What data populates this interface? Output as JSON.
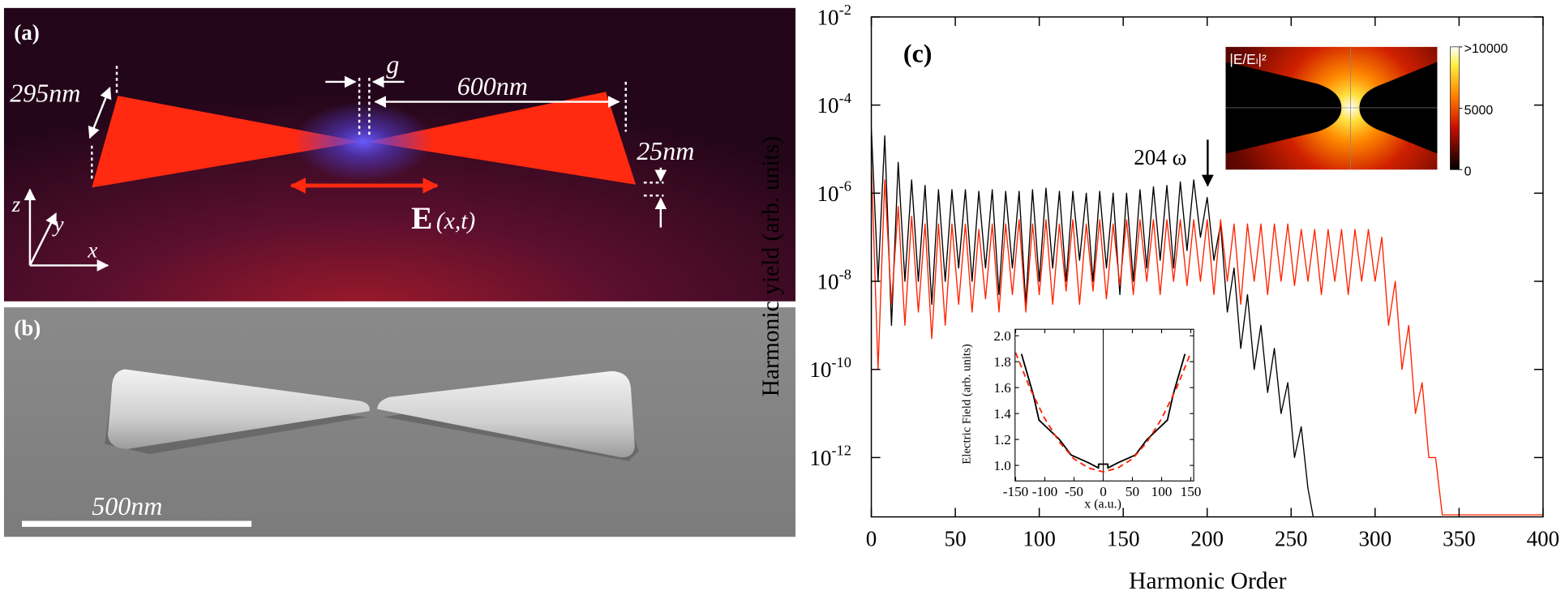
{
  "panel_a": {
    "label": "(a)",
    "height_label": "295nm",
    "gap_label": "g",
    "length_label": "600nm",
    "thickness_label": "25nm",
    "field_symbol": "E",
    "field_args": "(x,t)",
    "axis_z": "z",
    "axis_y": "y",
    "axis_x": "x"
  },
  "panel_b": {
    "label": "(b)",
    "scale_bar_label": "500nm"
  },
  "field_map_inset": {
    "title": "|E/Eₗ|²",
    "clim": [
      0,
      10000
    ],
    "colorbar_ticks": [
      0,
      5000,
      {
        "value": 10000,
        "label": ">10000"
      }
    ]
  },
  "chart_data": [
    {
      "type": "line",
      "panel_label": "(c)",
      "ylabel": "Harmonic yield (arb. units)",
      "xlabel": "Harmonic Order",
      "annotation": "204 ω",
      "yscale": "log",
      "xlim": [
        0,
        400
      ],
      "xticks": [
        0,
        50,
        100,
        150,
        200,
        250,
        300,
        350,
        400
      ],
      "ylim": [
        4.5e-14,
        0.01
      ],
      "yticks": [
        {
          "value": 1e-12,
          "label": "10",
          "power": "-12"
        },
        {
          "value": 1e-10,
          "label": "10",
          "power": "-10"
        },
        {
          "value": 1e-08,
          "label": "10",
          "power": "-8"
        },
        {
          "value": 1e-06,
          "label": "10",
          "power": "-6"
        },
        {
          "value": 0.0001,
          "label": "10",
          "power": "-4"
        },
        {
          "value": 0.01,
          "label": "10",
          "power": "-2"
        }
      ],
      "x": [
        0,
        4,
        8,
        12,
        16,
        20,
        24,
        28,
        32,
        36,
        40,
        44,
        48,
        52,
        56,
        60,
        64,
        68,
        72,
        76,
        80,
        84,
        88,
        92,
        96,
        100,
        104,
        108,
        112,
        116,
        120,
        124,
        128,
        132,
        136,
        140,
        144,
        148,
        152,
        156,
        160,
        164,
        168,
        172,
        176,
        180,
        184,
        188,
        192,
        196,
        200,
        204,
        208,
        212,
        216,
        220,
        224,
        228,
        232,
        236,
        240,
        244,
        248,
        252,
        256,
        260,
        264,
        268,
        272,
        276,
        280,
        284,
        288,
        292,
        296,
        300,
        304,
        308,
        312,
        316,
        320,
        324,
        328,
        332,
        336,
        340,
        344,
        348,
        352,
        356,
        360,
        364,
        368,
        372,
        376,
        380,
        384,
        388,
        392,
        396,
        400
      ],
      "series": [
        {
          "color": "#000000",
          "values": [
            3e-05,
            1e-08,
            2e-05,
            1e-09,
            5e-06,
            1e-08,
            2e-06,
            1e-08,
            1.5e-06,
            3e-09,
            1.2e-06,
            1e-08,
            1.2e-06,
            2e-08,
            1.2e-06,
            1e-08,
            1.1e-06,
            2e-08,
            1.2e-06,
            5e-09,
            1.1e-06,
            2e-08,
            1.1e-06,
            3e-09,
            1.2e-06,
            1e-08,
            1.3e-06,
            2e-08,
            1.1e-06,
            1e-08,
            1.1e-06,
            3e-08,
            1e-06,
            1e-08,
            1.1e-06,
            2e-08,
            1e-06,
            5e-09,
            1e-06,
            1e-08,
            1.2e-06,
            2e-08,
            1.4e-06,
            3e-08,
            1.5e-06,
            2e-08,
            1.8e-06,
            5e-08,
            2e-06,
            1e-07,
            8e-07,
            3e-08,
            2e-07,
            2e-09,
            2e-08,
            3e-10,
            5e-09,
            1e-10,
            1e-09,
            3e-11,
            3e-10,
            1e-11,
            5e-11,
            1e-12,
            5e-12,
            2e-13,
            3e-14,
            null,
            null,
            null,
            null,
            null,
            null,
            null,
            null,
            null,
            null,
            null,
            null,
            null,
            null,
            null,
            null,
            null,
            null,
            null,
            null,
            null,
            null,
            null,
            null,
            null,
            null,
            null,
            null,
            null,
            null,
            null,
            null,
            null,
            null
          ]
        },
        {
          "color": "#ff2200",
          "values": [
            5e-06,
            1e-10,
            2e-06,
            3e-09,
            5e-07,
            1e-09,
            3e-07,
            2e-09,
            2e-07,
            5e-10,
            2e-07,
            1e-09,
            2e-07,
            3e-09,
            2e-07,
            2e-09,
            1.5e-07,
            4e-09,
            2e-07,
            2e-09,
            2e-07,
            5e-09,
            2.5e-07,
            2e-09,
            2e-07,
            5e-09,
            2.5e-07,
            3e-09,
            2e-07,
            6e-09,
            2.5e-07,
            3e-09,
            2e-07,
            6e-09,
            2.5e-07,
            4e-09,
            2e-07,
            8e-09,
            2.5e-07,
            5e-09,
            2.5e-07,
            1e-08,
            2.5e-07,
            5e-09,
            2.5e-07,
            1e-08,
            2.5e-07,
            8e-09,
            2.5e-07,
            1e-08,
            2.5e-07,
            5e-09,
            2.5e-07,
            1e-08,
            2e-07,
            3e-09,
            2e-07,
            1e-08,
            2e-07,
            5e-09,
            2e-07,
            1e-08,
            2e-07,
            8e-09,
            1.5e-07,
            1e-08,
            1.5e-07,
            5e-09,
            1.5e-07,
            1e-08,
            1.5e-07,
            5e-09,
            1.5e-07,
            1e-08,
            1.5e-07,
            1e-08,
            1e-07,
            1e-09,
            1e-08,
            1e-10,
            1e-09,
            1e-11,
            5e-11,
            1e-12,
            1e-12,
            5e-14,
            5e-14,
            5e-14,
            5e-14,
            5e-14,
            5e-14,
            5e-14,
            5e-14,
            5e-14,
            5e-14,
            5e-14,
            5e-14,
            5e-14,
            5e-14,
            5e-14,
            5e-14
          ]
        }
      ]
    },
    {
      "type": "line",
      "ylabel": "Electric Field (arb. units)",
      "xlabel": "x (a.u.)",
      "xlim": [
        -151,
        155
      ],
      "xticks": [
        -150,
        -100,
        -50,
        0,
        50,
        100,
        150
      ],
      "ylim": [
        0.88,
        2.05
      ],
      "yticks": [
        {
          "value": 1,
          "label": "1.0"
        },
        1.2,
        1.4,
        1.6,
        1.8,
        {
          "value": 2,
          "label": "2.0"
        }
      ],
      "series": [
        {
          "color": "#000000",
          "dash": "none",
          "x": [
            -140,
            -120,
            -110,
            -75,
            -55,
            -25,
            -8,
            -8,
            8,
            8,
            25,
            55,
            75,
            110,
            120,
            140
          ],
          "values": [
            1.86,
            1.55,
            1.35,
            1.2,
            1.08,
            1.02,
            0.98,
            1.01,
            1.01,
            0.98,
            1.02,
            1.08,
            1.2,
            1.35,
            1.55,
            1.86
          ]
        },
        {
          "color": "#ff2200",
          "dash": "6 4",
          "x": [
            -150,
            -125,
            -100,
            -75,
            -50,
            -25,
            0,
            25,
            50,
            75,
            100,
            125,
            150
          ],
          "values": [
            1.87,
            1.59,
            1.36,
            1.18,
            1.05,
            0.98,
            0.95,
            0.98,
            1.05,
            1.18,
            1.36,
            1.59,
            1.87
          ]
        }
      ]
    }
  ]
}
